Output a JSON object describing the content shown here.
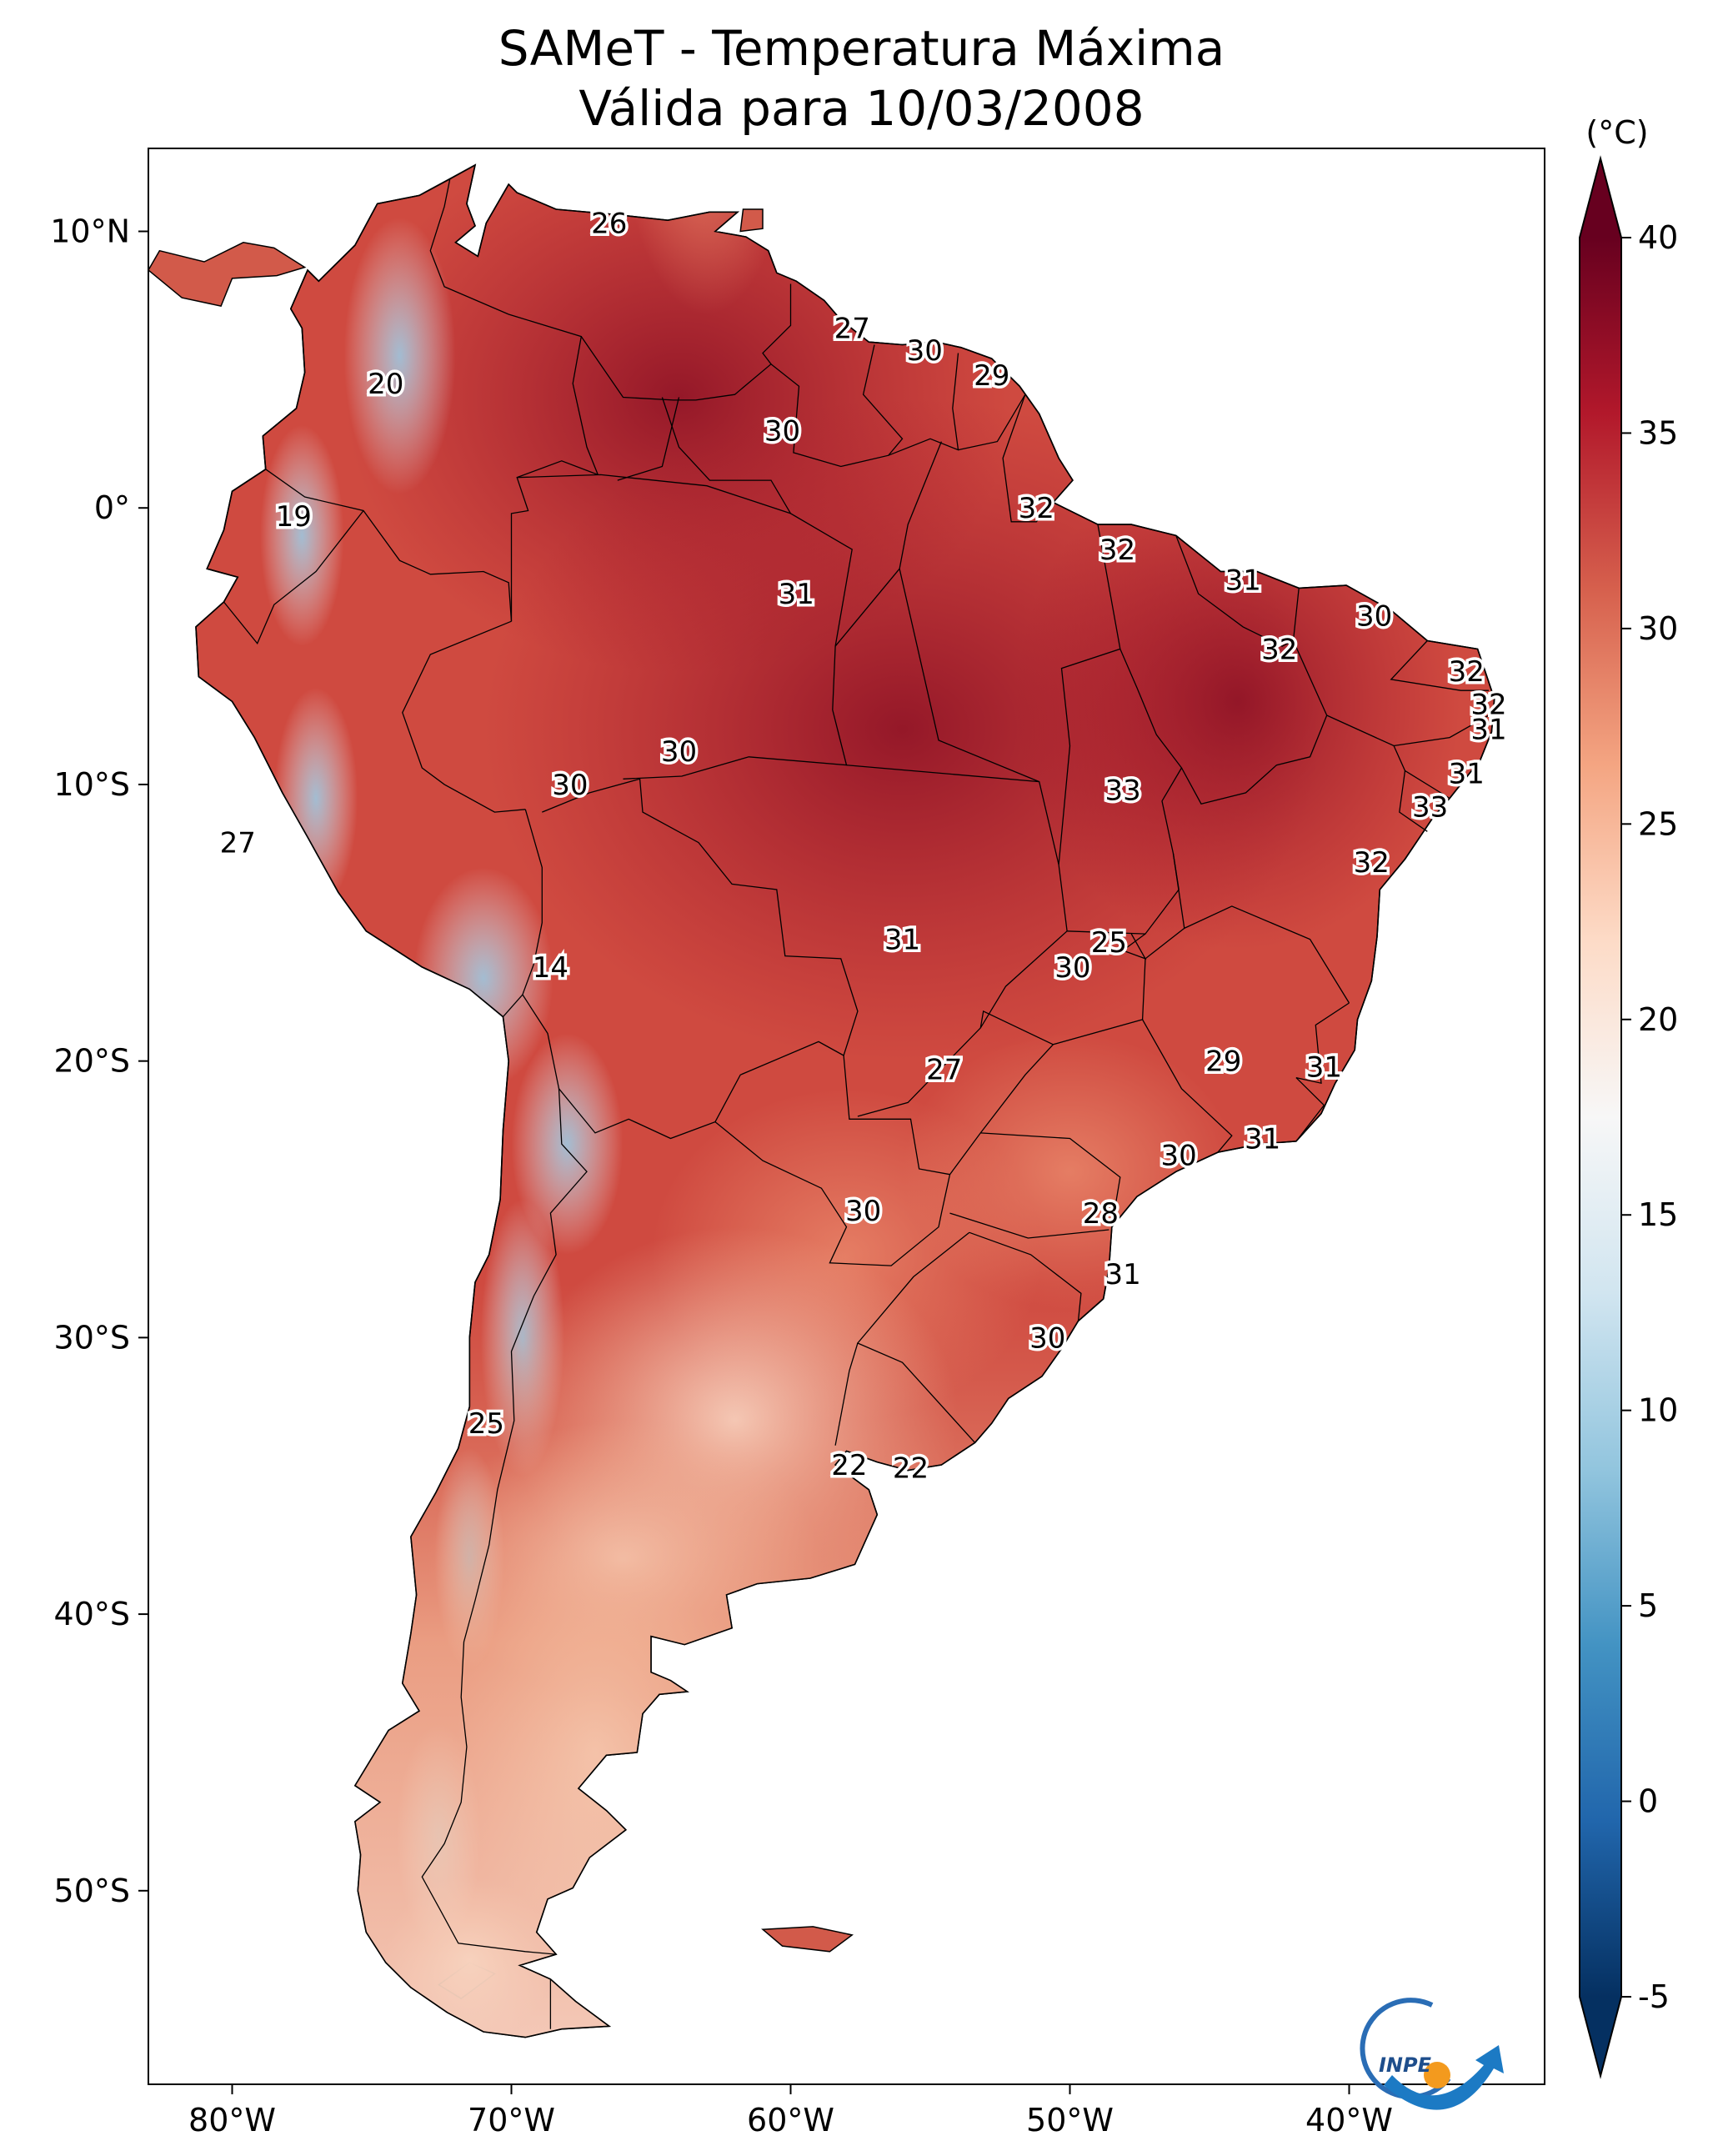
{
  "title": "SAMeT - Temperatura Máxima",
  "subtitle": "Válida para 10/03/2008",
  "map": {
    "lon_range": [
      -83,
      -33
    ],
    "lat_range": [
      -57,
      13
    ],
    "lon_ticks": [
      {
        "value": -80,
        "label": "80°W"
      },
      {
        "value": -70,
        "label": "70°W"
      },
      {
        "value": -60,
        "label": "60°W"
      },
      {
        "value": -50,
        "label": "50°W"
      },
      {
        "value": -40,
        "label": "40°W"
      }
    ],
    "lat_ticks": [
      {
        "value": 10,
        "label": "10°N"
      },
      {
        "value": 0,
        "label": "0°"
      },
      {
        "value": -10,
        "label": "10°S"
      },
      {
        "value": -20,
        "label": "20°S"
      },
      {
        "value": -30,
        "label": "30°S"
      },
      {
        "value": -40,
        "label": "40°S"
      },
      {
        "value": -50,
        "label": "50°S"
      }
    ]
  },
  "colorbar": {
    "unit": "(°C)",
    "min": -5,
    "max": 40,
    "ticks": [
      {
        "value": 40,
        "label": "40"
      },
      {
        "value": 35,
        "label": "35"
      },
      {
        "value": 30,
        "label": "30"
      },
      {
        "value": 25,
        "label": "25"
      },
      {
        "value": 20,
        "label": "20"
      },
      {
        "value": 15,
        "label": "15"
      },
      {
        "value": 10,
        "label": "10"
      },
      {
        "value": 5,
        "label": "5"
      },
      {
        "value": 0,
        "label": "0"
      },
      {
        "value": -5,
        "label": "-5"
      }
    ],
    "colors": [
      "#053061",
      "#2166ac",
      "#4393c3",
      "#92c5de",
      "#d1e5f0",
      "#f7f7f7",
      "#fddbc7",
      "#f4a582",
      "#d6604d",
      "#b2182b",
      "#67001f"
    ]
  },
  "state_labels": [
    {
      "lon": -66.5,
      "lat": 10.3,
      "text": "26"
    },
    {
      "lon": -74.5,
      "lat": 4.5,
      "text": "20"
    },
    {
      "lon": -77.8,
      "lat": -0.3,
      "text": "19"
    },
    {
      "lon": -57.8,
      "lat": 6.5,
      "text": "27"
    },
    {
      "lon": -55.2,
      "lat": 5.7,
      "text": "30"
    },
    {
      "lon": -52.8,
      "lat": 4.8,
      "text": "29"
    },
    {
      "lon": -60.3,
      "lat": 2.8,
      "text": "30"
    },
    {
      "lon": -51.2,
      "lat": 0.0,
      "text": "32"
    },
    {
      "lon": -48.3,
      "lat": -1.5,
      "text": "32"
    },
    {
      "lon": -43.8,
      "lat": -2.6,
      "text": "31"
    },
    {
      "lon": -39.1,
      "lat": -3.9,
      "text": "30"
    },
    {
      "lon": -59.8,
      "lat": -3.1,
      "text": "31"
    },
    {
      "lon": -42.5,
      "lat": -5.1,
      "text": "32"
    },
    {
      "lon": -35.8,
      "lat": -5.9,
      "text": "32"
    },
    {
      "lon": -35.0,
      "lat": -7.1,
      "text": "32"
    },
    {
      "lon": -35.0,
      "lat": -8.0,
      "text": "31"
    },
    {
      "lon": -35.8,
      "lat": -9.6,
      "text": "31"
    },
    {
      "lon": -37.1,
      "lat": -10.8,
      "text": "33"
    },
    {
      "lon": -64.0,
      "lat": -8.8,
      "text": "30"
    },
    {
      "lon": -67.9,
      "lat": -10.0,
      "text": "30"
    },
    {
      "lon": -48.1,
      "lat": -10.2,
      "text": "33"
    },
    {
      "lon": -39.2,
      "lat": -12.8,
      "text": "32"
    },
    {
      "lon": -79.8,
      "lat": -12.1,
      "text": "27"
    },
    {
      "lon": -68.6,
      "lat": -16.6,
      "text": "14"
    },
    {
      "lon": -56.0,
      "lat": -15.6,
      "text": "31"
    },
    {
      "lon": -48.6,
      "lat": -15.7,
      "text": "25"
    },
    {
      "lon": -49.9,
      "lat": -16.6,
      "text": "30"
    },
    {
      "lon": -54.5,
      "lat": -20.3,
      "text": "27"
    },
    {
      "lon": -44.5,
      "lat": -20.0,
      "text": "29"
    },
    {
      "lon": -40.9,
      "lat": -20.2,
      "text": "31"
    },
    {
      "lon": -43.1,
      "lat": -22.8,
      "text": "31"
    },
    {
      "lon": -46.1,
      "lat": -23.4,
      "text": "30"
    },
    {
      "lon": -57.4,
      "lat": -25.4,
      "text": "30"
    },
    {
      "lon": -48.9,
      "lat": -25.5,
      "text": "28"
    },
    {
      "lon": -48.1,
      "lat": -27.7,
      "text": "31"
    },
    {
      "lon": -50.8,
      "lat": -30.0,
      "text": "30"
    },
    {
      "lon": -70.9,
      "lat": -33.1,
      "text": "25"
    },
    {
      "lon": -57.9,
      "lat": -34.6,
      "text": "22"
    },
    {
      "lon": -55.7,
      "lat": -34.7,
      "text": "22"
    }
  ],
  "logo": {
    "text": "INPE"
  }
}
